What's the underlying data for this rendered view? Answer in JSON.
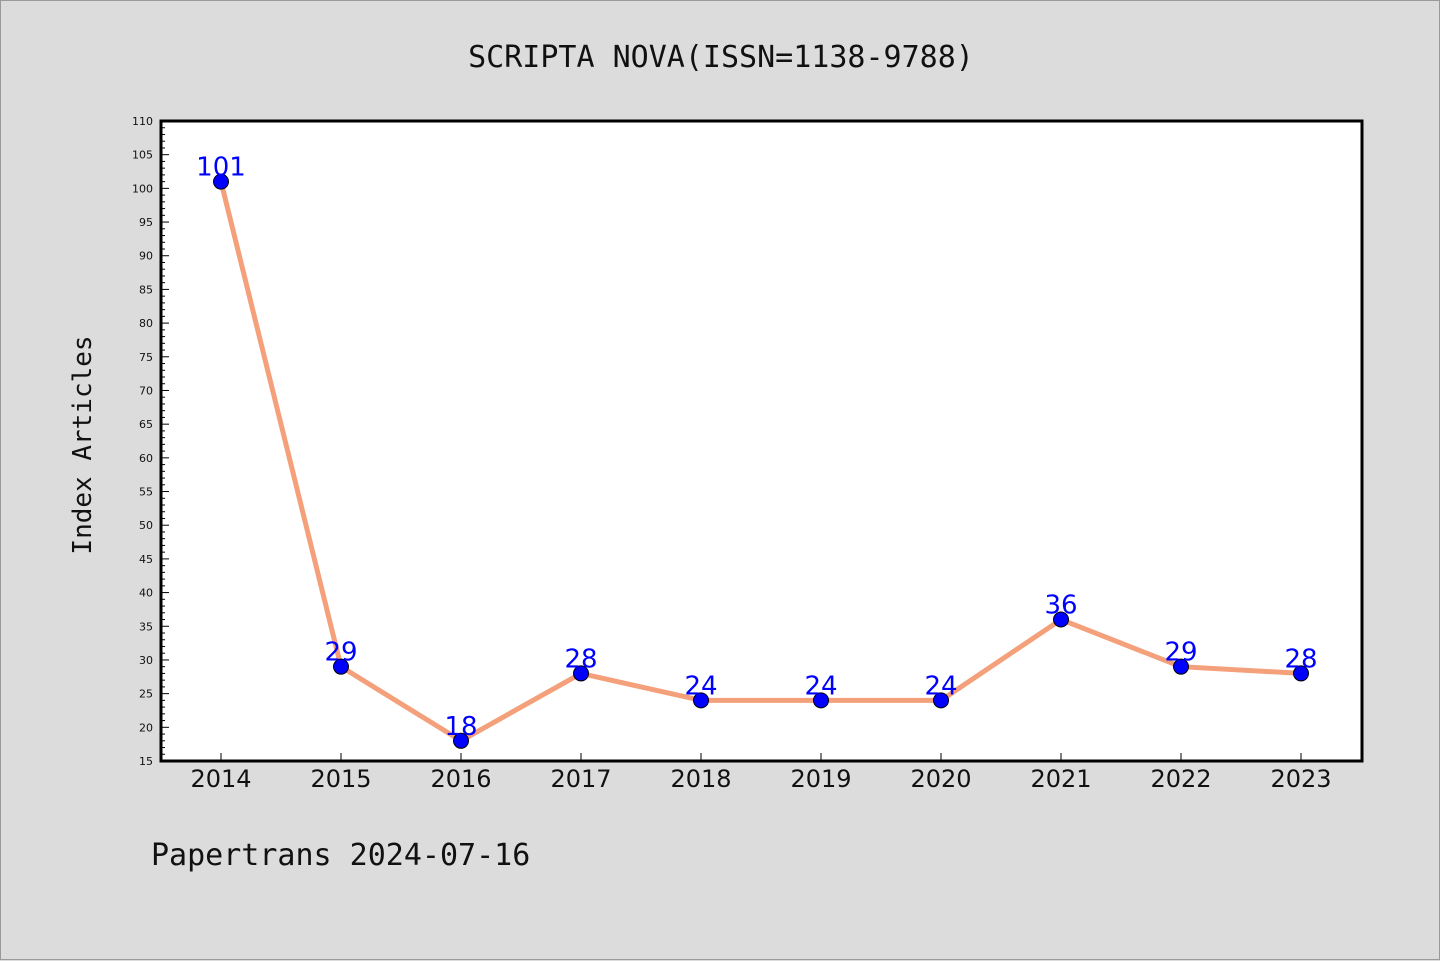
{
  "chart_data": {
    "type": "line",
    "title": "SCRIPTA NOVA(ISSN=1138-9788)",
    "xlabel": "",
    "ylabel": "Index Articles",
    "categories": [
      "2014",
      "2015",
      "2016",
      "2017",
      "2018",
      "2019",
      "2020",
      "2021",
      "2022",
      "2023"
    ],
    "series": [
      {
        "values": [
          101,
          29,
          18,
          28,
          24,
          24,
          24,
          36,
          29,
          28
        ]
      }
    ],
    "ylim": [
      15,
      110
    ],
    "ytick_step": 5,
    "grid": false,
    "data_labels": true,
    "colors": {
      "line": "#f4a07a",
      "marker": "#0000ff",
      "label": "#0000ff",
      "plot_bg": "#ffffff",
      "page_bg": "#dcdcdc"
    }
  },
  "footer": {
    "text": "Papertrans 2024-07-16"
  }
}
